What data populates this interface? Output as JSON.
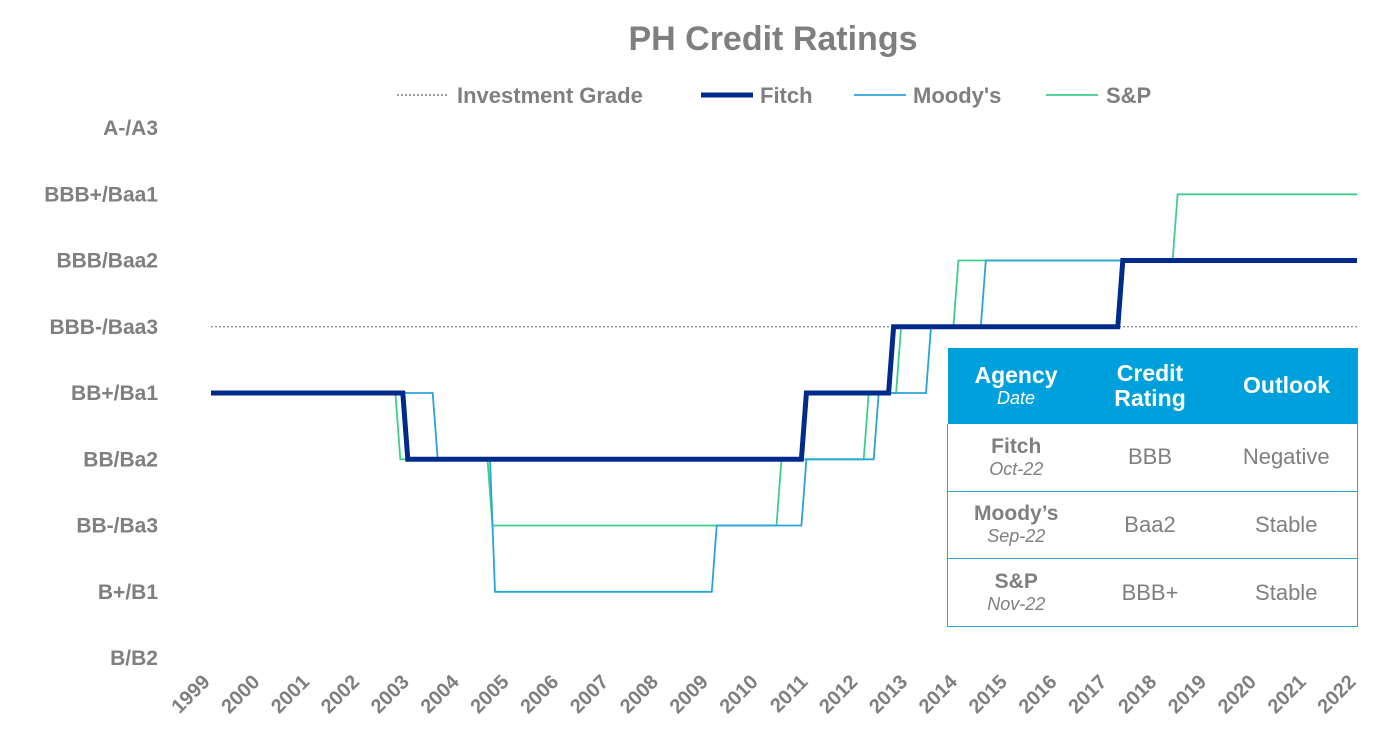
{
  "chart_data": {
    "type": "line",
    "title": "PH Credit Ratings",
    "xlabel": "",
    "ylabel": "",
    "x_ticks": [
      "1999",
      "2000",
      "2001",
      "2002",
      "2003",
      "2004",
      "2005",
      "2006",
      "2007",
      "2008",
      "2009",
      "2010",
      "2011",
      "2012",
      "2013",
      "2014",
      "2015",
      "2016",
      "2017",
      "2018",
      "2019",
      "2020",
      "2021",
      "2022"
    ],
    "xlim": [
      1999,
      2022
    ],
    "y_categories": [
      "B/B2",
      "B+/B1",
      "BB-/Ba3",
      "BB/Ba2",
      "BB+/Ba1",
      "BBB-/Baa3",
      "BBB/Baa2",
      "BBB+/Baa1",
      "A-/A3"
    ],
    "ylim": [
      0,
      8
    ],
    "legend": {
      "position": "top"
    },
    "grid": false,
    "investment_grade": {
      "name": "Investment Grade",
      "level": 5,
      "color": "#808080"
    },
    "series": [
      {
        "name": "Fitch",
        "color": "#002b8a",
        "style": "thick",
        "points": [
          [
            1999,
            4
          ],
          [
            2002.85,
            4
          ],
          [
            2002.95,
            3
          ],
          [
            2010.85,
            3
          ],
          [
            2010.95,
            4
          ],
          [
            2012.6,
            4
          ],
          [
            2012.7,
            5
          ],
          [
            2017.2,
            5
          ],
          [
            2017.3,
            6
          ],
          [
            2022,
            6
          ]
        ]
      },
      {
        "name": "Moody's",
        "color": "#29a3db",
        "style": "thin",
        "points": [
          [
            1999,
            4
          ],
          [
            2003.45,
            4
          ],
          [
            2003.55,
            3
          ],
          [
            2004.6,
            3
          ],
          [
            2004.7,
            1
          ],
          [
            2009.05,
            1
          ],
          [
            2009.15,
            2
          ],
          [
            2010.85,
            2
          ],
          [
            2010.95,
            3
          ],
          [
            2012.3,
            3
          ],
          [
            2012.4,
            4
          ],
          [
            2013.35,
            4
          ],
          [
            2013.45,
            5
          ],
          [
            2014.45,
            5
          ],
          [
            2014.55,
            6
          ],
          [
            2022,
            6
          ]
        ]
      },
      {
        "name": "S&P",
        "color": "#3ccf8e",
        "style": "thin",
        "points": [
          [
            1999,
            4
          ],
          [
            2002.7,
            4
          ],
          [
            2002.8,
            3
          ],
          [
            2004.55,
            3
          ],
          [
            2004.65,
            2
          ],
          [
            2010.35,
            2
          ],
          [
            2010.45,
            3
          ],
          [
            2012.1,
            3
          ],
          [
            2012.2,
            4
          ],
          [
            2012.75,
            4
          ],
          [
            2012.85,
            5
          ],
          [
            2013.9,
            5
          ],
          [
            2014.0,
            6
          ],
          [
            2018.3,
            6
          ],
          [
            2018.4,
            7
          ],
          [
            2022,
            7
          ]
        ]
      }
    ]
  },
  "table": {
    "headers": [
      {
        "main": "Agency",
        "sub": "Date"
      },
      {
        "main": "Credit Rating",
        "sub": ""
      },
      {
        "main": "Outlook",
        "sub": ""
      }
    ],
    "rows": [
      {
        "agency": "Fitch",
        "date": "Oct-22",
        "rating": "BBB",
        "outlook": "Negative"
      },
      {
        "agency": "Moody’s",
        "date": "Sep-22",
        "rating": "Baa2",
        "outlook": "Stable"
      },
      {
        "agency": "S&P",
        "date": "Nov-22",
        "rating": "BBB+",
        "outlook": "Stable"
      }
    ]
  }
}
